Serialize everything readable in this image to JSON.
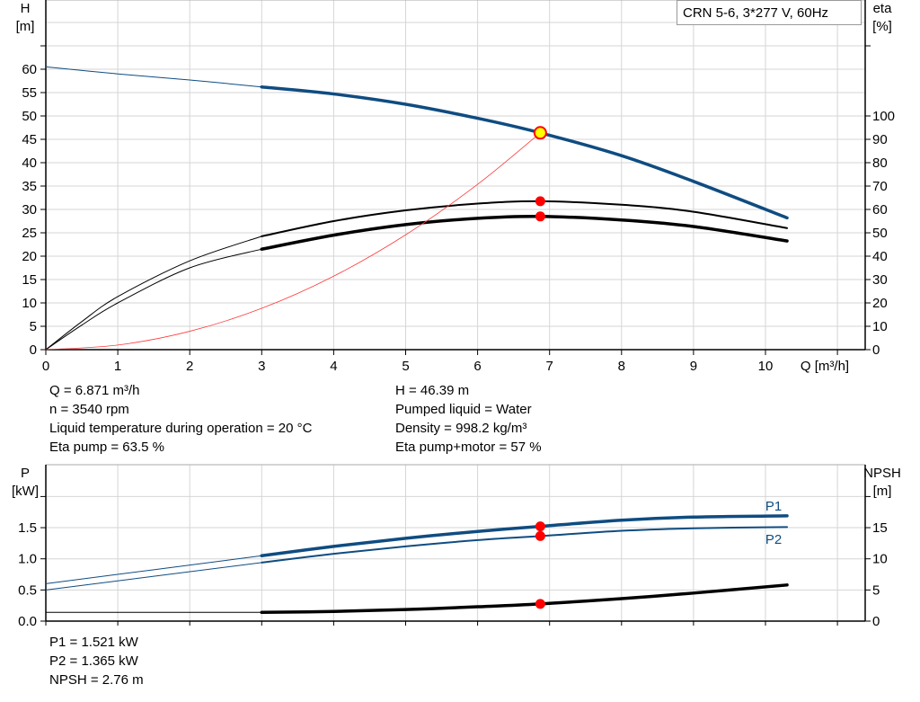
{
  "chart_data": [
    {
      "type": "line",
      "title": "CRN 5-6, 3*277 V, 60Hz",
      "xlabel": "Q [m³/h]",
      "ylabel": "H\n[m]",
      "y2label": "eta\n[%]",
      "xlabel_text": "Q [m³/h]",
      "ylabel_lines": [
        "H",
        "[m]"
      ],
      "y2label_lines": [
        "eta",
        "[%]"
      ],
      "xlim": [
        0,
        11
      ],
      "ylim": [
        0,
        70
      ],
      "y2lim": [
        0,
        100
      ],
      "xticks": [
        "0",
        "1",
        "2",
        "3",
        "4",
        "5",
        "6",
        "7",
        "8",
        "9",
        "10"
      ],
      "yticks": [
        "0",
        "5",
        "10",
        "15",
        "20",
        "25",
        "30",
        "35",
        "40",
        "45",
        "50",
        "55",
        "60"
      ],
      "y2ticks": [
        "0",
        "10",
        "20",
        "30",
        "40",
        "50",
        "60",
        "70",
        "80",
        "90",
        "100"
      ],
      "grid": true,
      "legend": "top-right",
      "series": [
        {
          "key": "H",
          "axis": "left",
          "color": "#0f4c81",
          "thick_from": 3,
          "x": [
            0,
            1,
            2,
            3,
            4,
            5,
            6,
            6.871,
            8,
            9,
            10.3
          ],
          "y": [
            60.5,
            59,
            57.7,
            56.2,
            54.7,
            52.5,
            49.5,
            46.39,
            41.5,
            36,
            28.2
          ]
        },
        {
          "key": "eta_pump",
          "axis": "right",
          "color": "#000000",
          "thick_from": 3,
          "x": [
            0,
            0.5,
            1,
            2,
            3,
            4,
            5,
            6,
            6.871,
            8,
            9,
            10.3
          ],
          "y": [
            0,
            12,
            22.7,
            38,
            48.5,
            55,
            59.6,
            62.5,
            63.5,
            62,
            59,
            52
          ]
        },
        {
          "key": "eta_pump_motor",
          "axis": "right",
          "color": "#000000",
          "thick_from": 3,
          "heavy": true,
          "x": [
            0,
            0.5,
            1,
            2,
            3,
            4,
            5,
            6,
            6.871,
            8,
            9,
            10.3
          ],
          "y": [
            0,
            10.5,
            20,
            35,
            43,
            49,
            53.5,
            56.2,
            57,
            55.5,
            52.7,
            46.5
          ]
        },
        {
          "key": "system",
          "axis": "left",
          "color": "#ff3b3b",
          "system": true,
          "x": [
            0,
            1,
            2,
            3,
            4,
            5,
            6,
            6.871
          ],
          "y": [
            0,
            0.98,
            3.93,
            8.84,
            15.72,
            24.57,
            35.37,
            46.39
          ]
        }
      ],
      "points": [
        {
          "axis": "left",
          "x": 6.871,
          "y": 46.39,
          "color": "#ffff00",
          "stroke": "#ff0000"
        },
        {
          "axis": "right",
          "x": 6.871,
          "y": 63.5,
          "color": "#ff0000"
        },
        {
          "axis": "right",
          "x": 6.871,
          "y": 57,
          "color": "#ff0000"
        }
      ]
    },
    {
      "type": "line",
      "ylabel_lines": [
        "P",
        "[kW]"
      ],
      "y2label_lines": [
        "NPSH",
        "[m]"
      ],
      "xlim": [
        0,
        11
      ],
      "ylim": [
        0,
        2.5
      ],
      "y2lim": [
        0,
        25
      ],
      "yticks": [
        "0.0",
        "0.5",
        "1.0",
        "1.5"
      ],
      "y2ticks": [
        "0",
        "5",
        "10",
        "15"
      ],
      "grid": true,
      "series": [
        {
          "key": "P1",
          "name": "P1",
          "axis": "left",
          "color": "#0f4c81",
          "thick_from": 3,
          "heavy": true,
          "x": [
            0,
            3,
            4,
            5,
            6,
            6.871,
            8,
            9,
            10.3
          ],
          "y": [
            0.6,
            1.05,
            1.2,
            1.33,
            1.44,
            1.521,
            1.62,
            1.67,
            1.69
          ]
        },
        {
          "key": "P2",
          "name": "P2",
          "axis": "left",
          "color": "#0f4c81",
          "thick_from": 3,
          "x": [
            0,
            3,
            4,
            5,
            6,
            6.871,
            8,
            9,
            10.3
          ],
          "y": [
            0.5,
            0.94,
            1.08,
            1.2,
            1.3,
            1.365,
            1.45,
            1.49,
            1.51
          ]
        },
        {
          "key": "NPSH",
          "axis": "right",
          "color": "#000000",
          "thick_from": 3,
          "heavy": true,
          "x": [
            0,
            3,
            4,
            5,
            6,
            6.871,
            8,
            9,
            10.3
          ],
          "y": [
            1.4,
            1.4,
            1.55,
            1.85,
            2.3,
            2.76,
            3.6,
            4.5,
            5.8
          ]
        }
      ],
      "points": [
        {
          "axis": "left",
          "x": 6.871,
          "y": 1.521,
          "color": "#ff0000"
        },
        {
          "axis": "left",
          "x": 6.871,
          "y": 1.365,
          "color": "#ff0000"
        },
        {
          "axis": "right",
          "x": 6.871,
          "y": 2.76,
          "color": "#ff0000"
        }
      ]
    }
  ],
  "info_top_left": [
    "Q = 6.871 m³/h",
    "n = 3540 rpm",
    "Liquid temperature during operation = 20 °C",
    "Eta pump = 63.5 %"
  ],
  "info_top_right": [
    "H = 46.39 m",
    "Pumped liquid = Water",
    "Density = 998.2 kg/m³",
    "Eta pump+motor = 57 %"
  ],
  "info_bottom": [
    "P1 = 1.521 kW",
    "P2 = 1.365 kW",
    "NPSH = 2.76 m"
  ]
}
